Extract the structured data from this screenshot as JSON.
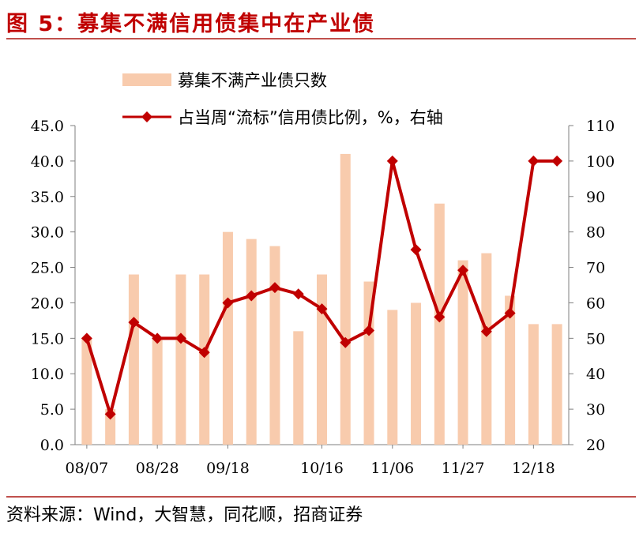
{
  "figure_title": "图 5：募集不满信用债集中在产业债",
  "source_text": "资料来源：Wind，大智慧，同花顺，招商证券",
  "colors": {
    "bar": "#f8cbad",
    "line": "#c00000",
    "title": "#c00000",
    "rule": "#c0504d"
  },
  "chart_data": {
    "type": "bar+line",
    "categories": [
      "08/07",
      "08/14",
      "08/21",
      "08/28",
      "09/04",
      "09/11",
      "09/18",
      "09/25",
      "10/02",
      "10/09",
      "10/16",
      "10/23",
      "10/30",
      "11/06",
      "11/13",
      "11/20",
      "11/27",
      "12/04",
      "12/11",
      "12/18",
      "12/25"
    ],
    "x_tick_labels": [
      "08/07",
      "",
      "",
      "08/28",
      "",
      "",
      "09/18",
      "",
      "",
      "",
      "10/16",
      "",
      "",
      "11/06",
      "",
      "",
      "11/27",
      "",
      "",
      "12/18",
      ""
    ],
    "series": [
      {
        "name": "募集不满产业债只数",
        "type": "bar",
        "axis": "left",
        "values": [
          15,
          5,
          24,
          15,
          24,
          24,
          30,
          29,
          28,
          16,
          24,
          41,
          23,
          19,
          20,
          34,
          26,
          27,
          21,
          17,
          17
        ]
      },
      {
        "name": "占当周“流标”信用债比例，%，右轴",
        "type": "line",
        "axis": "right",
        "values": [
          50,
          28.6,
          54.5,
          50,
          50,
          46,
          60,
          62,
          64.3,
          62.5,
          58.3,
          48.8,
          52.2,
          100,
          75,
          56,
          69.2,
          51.9,
          57.1,
          100,
          100
        ]
      }
    ],
    "left_axis": {
      "min": 0,
      "max": 45,
      "step": 5,
      "tick_labels": [
        "0.0",
        "5.0",
        "10.0",
        "15.0",
        "20.0",
        "25.0",
        "30.0",
        "35.0",
        "40.0",
        "45.0"
      ]
    },
    "right_axis": {
      "min": 20,
      "max": 110,
      "step": 10,
      "tick_labels": [
        "20",
        "30",
        "40",
        "50",
        "60",
        "70",
        "80",
        "90",
        "100",
        "110"
      ]
    },
    "grid": false,
    "legend_position": "top"
  }
}
